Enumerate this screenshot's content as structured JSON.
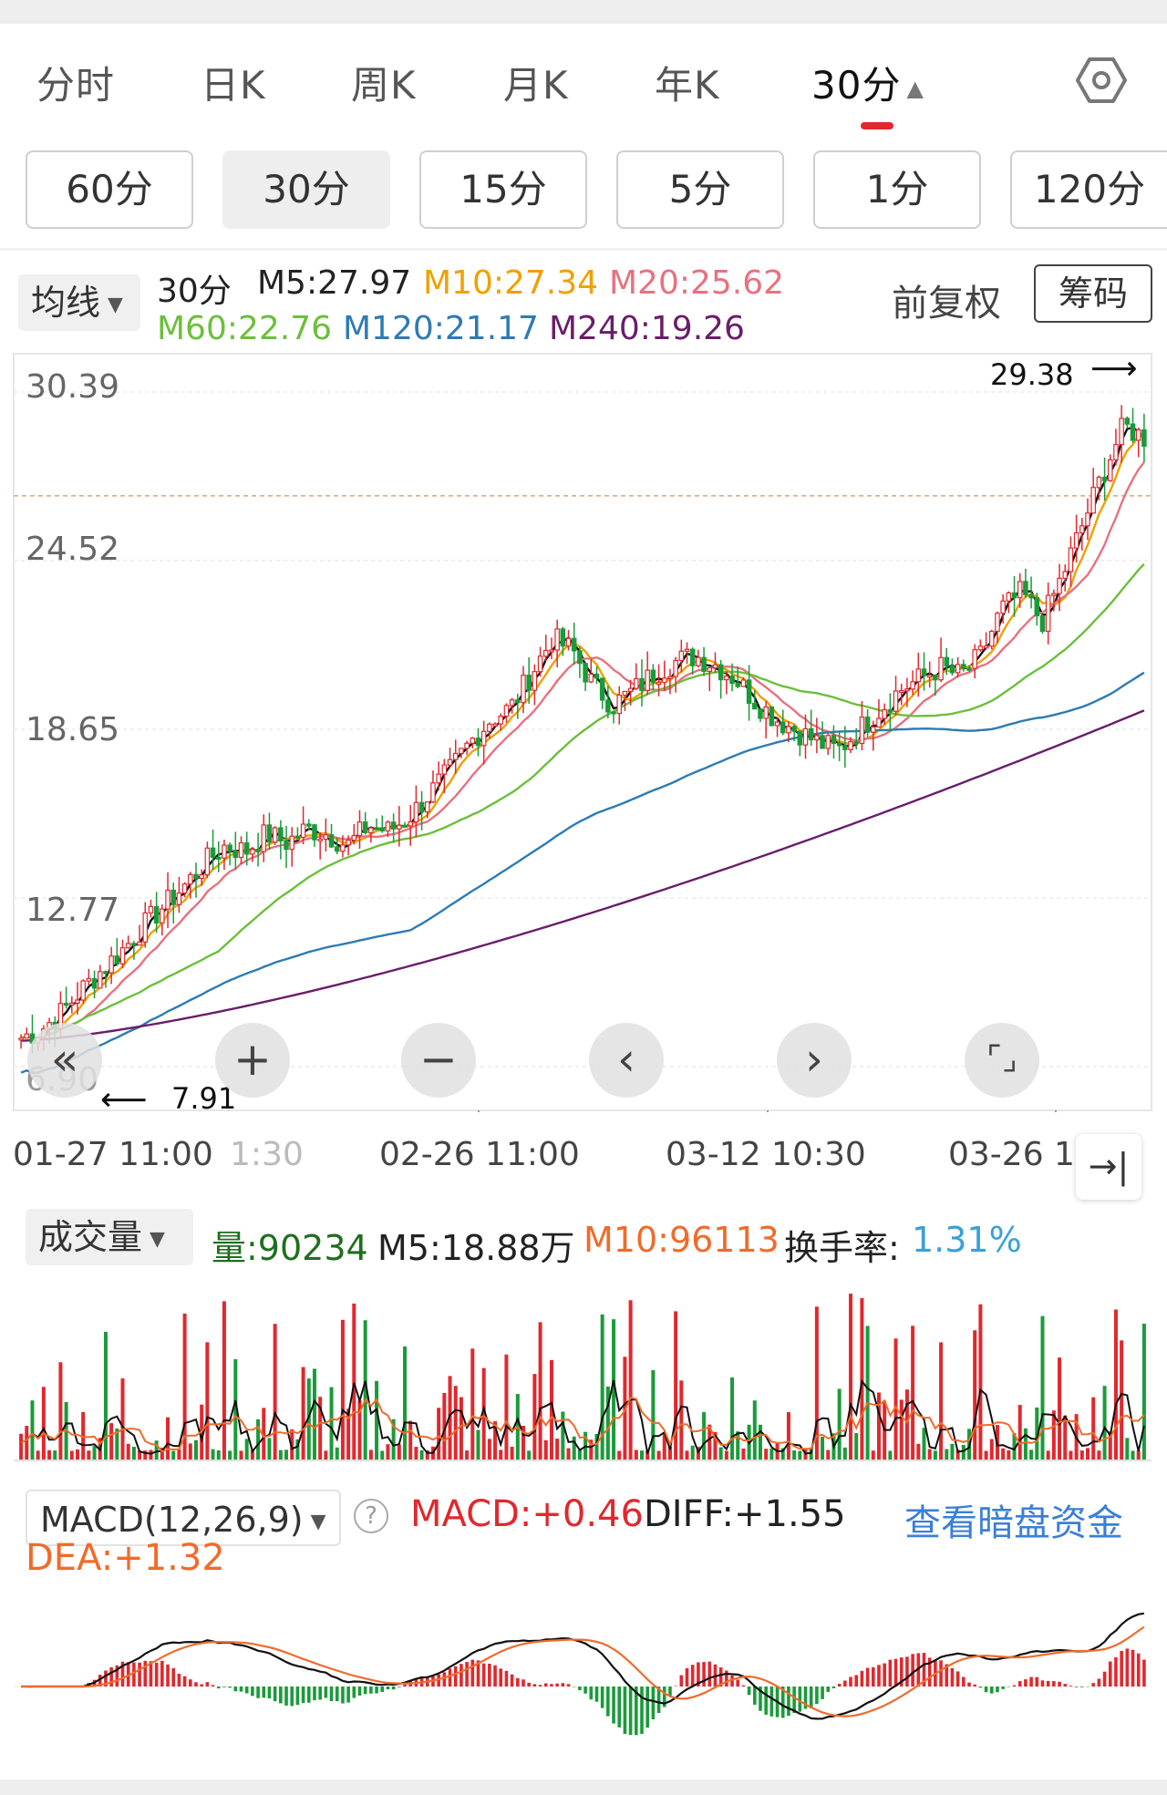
{
  "tabs": [
    "分时",
    "日K",
    "周K",
    "月K",
    "年K",
    "30分"
  ],
  "minute_buttons": [
    "60分",
    "30分",
    "15分",
    "5分",
    "1分",
    "120分"
  ],
  "ma_legend": {
    "dropdown": "均线",
    "period": "30分",
    "m5": "M5:27.97",
    "m10": "M10:27.34",
    "m20": "M20:25.62",
    "m60": "M60:22.76",
    "m120": "M120:21.17",
    "m240": "M240:19.26",
    "adjust": "前复权",
    "chips": "筹码"
  },
  "colors": {
    "up": "#e0282e",
    "down": "#1a9b3a",
    "m5": "#111111",
    "m10": "#f0a000",
    "m20": "#e8717f",
    "m60": "#6cbf3c",
    "m120": "#2e7bb4",
    "m240": "#6a1d6a",
    "vol_m10": "#f06b2b",
    "link": "#3b7fd6"
  },
  "price_axis": [
    "30.39",
    "24.52",
    "18.65",
    "12.77",
    "6.90"
  ],
  "high_marker": "29.38",
  "low_marker": "7.91",
  "time_axis": [
    "01-27 11:00",
    "1:30",
    "02-26 11:00",
    "03-12 10:30",
    "03-26 1"
  ],
  "controls": [
    "rewind-icon",
    "zoom-in-icon",
    "zoom-out-icon",
    "previous-icon",
    "next-icon",
    "fullscreen-icon"
  ],
  "volume": {
    "dropdown": "成交量",
    "vol": "量:90234",
    "m5": "M5:18.88万",
    "m10": "M10:96113",
    "turnover_label": "换手率:",
    "turnover_value": "1.31%"
  },
  "macd": {
    "dropdown": "MACD(12,26,9)",
    "macd": "MACD:+0.46",
    "diff": "DIFF:+1.55",
    "dea": "DEA:+1.32",
    "link": "查看暗盘资金"
  },
  "chart_data": {
    "type": "candlestick",
    "interval": "30分",
    "ylim": [
      6.9,
      30.39
    ],
    "y_ticks": [
      30.39,
      24.52,
      18.65,
      12.77,
      6.9
    ],
    "x_labels": [
      "01-27 11:00",
      "02-26 11:00",
      "03-12 10:30",
      "03-26"
    ],
    "max": 29.38,
    "min": 7.91,
    "ma": {
      "M5": 27.97,
      "M10": 27.34,
      "M20": 25.62,
      "M60": 22.76,
      "M120": 21.17,
      "M240": 19.26
    },
    "close_path": [
      7.9,
      8.2,
      8.8,
      9.6,
      10.3,
      11.0,
      11.8,
      12.5,
      13.2,
      14.0,
      14.6,
      14.4,
      15.0,
      14.7,
      15.2,
      15.0,
      14.6,
      15.3,
      15.1,
      15.6,
      16.4,
      17.2,
      18.2,
      19.0,
      19.4,
      20.6,
      21.8,
      21.4,
      20.2,
      19.5,
      20.0,
      20.6,
      21.0,
      21.2,
      20.9,
      20.4,
      19.6,
      19.0,
      18.6,
      18.2,
      17.9,
      18.6,
      19.3,
      20.0,
      20.4,
      20.8,
      20.5,
      21.2,
      22.8,
      23.4,
      22.4,
      24.0,
      25.8,
      27.6,
      29.2,
      28.8
    ],
    "volume_ma": {
      "M5": "18.88万",
      "M10": "96113"
    },
    "macd": {
      "MACD": 0.46,
      "DIFF": 1.55,
      "DEA": 1.32
    }
  }
}
